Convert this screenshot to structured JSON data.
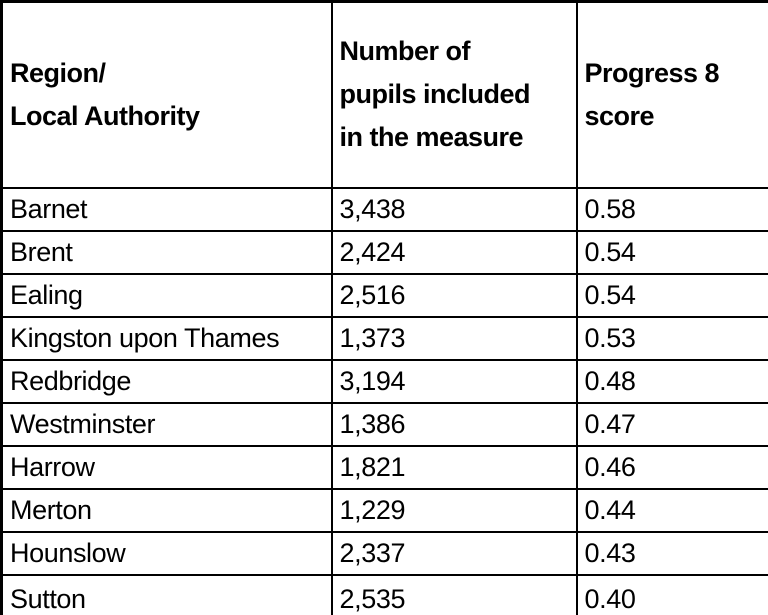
{
  "colors": {
    "background": "#ffffff",
    "border": "#000000",
    "text": "#000000"
  },
  "table": {
    "columns": [
      {
        "label": "Region/\nLocal Authority"
      },
      {
        "label": "Number of\npupils included\nin the measure"
      },
      {
        "label": "Progress 8\nscore"
      }
    ],
    "rows": [
      {
        "region": "Barnet",
        "pupils": "3,438",
        "score": "0.58"
      },
      {
        "region": "Brent",
        "pupils": "2,424",
        "score": "0.54"
      },
      {
        "region": "Ealing",
        "pupils": "2,516",
        "score": "0.54"
      },
      {
        "region": "Kingston upon Thames",
        "pupils": "1,373",
        "score": "0.53"
      },
      {
        "region": "Redbridge",
        "pupils": "3,194",
        "score": "0.48"
      },
      {
        "region": "Westminster",
        "pupils": "1,386",
        "score": "0.47"
      },
      {
        "region": "Harrow",
        "pupils": "1,821",
        "score": "0.46"
      },
      {
        "region": "Merton",
        "pupils": "1,229",
        "score": "0.44"
      },
      {
        "region": "Hounslow",
        "pupils": "2,337",
        "score": "0.43"
      },
      {
        "region": "Sutton",
        "pupils": "2,535",
        "score": "0.40"
      }
    ]
  }
}
